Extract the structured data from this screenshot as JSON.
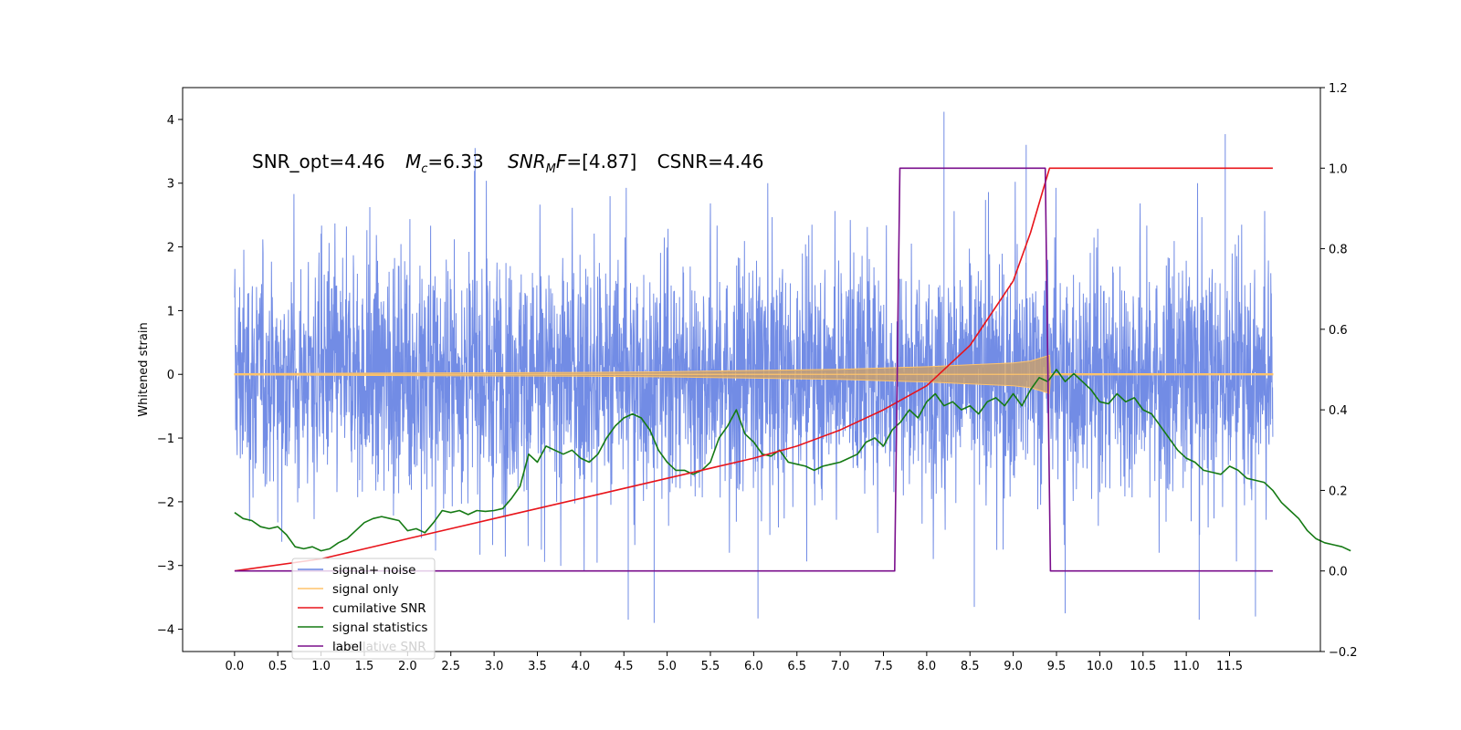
{
  "chart_data": {
    "type": "line",
    "title": "",
    "annotation": {
      "snr_opt": "SNR_opt=4.46",
      "mc_sym": "M",
      "mc_sub": "c",
      "mc_val": "=6.33",
      "snrmf_sym": "SNR",
      "snrmf_sub": "M",
      "snrmf_tail": "F",
      "snrmf_val": "=[4.87]",
      "csnr": "CSNR=4.46"
    },
    "ylabel_left": "Whitened strain",
    "ylabel_right": "",
    "xlim": [
      -0.6,
      12.55
    ],
    "ylim_left": [
      -4.35,
      4.5
    ],
    "ylim_right": [
      -0.2,
      1.2
    ],
    "x_ticks": [
      "0.0",
      "0.5",
      "1.0",
      "1.5",
      "2.0",
      "2.5",
      "3.0",
      "3.5",
      "4.0",
      "4.5",
      "5.0",
      "5.5",
      "6.0",
      "6.5",
      "7.0",
      "7.5",
      "8.0",
      "8.5",
      "9.0",
      "9.5",
      "10.0",
      "10.5",
      "11.0",
      "11.5"
    ],
    "y_ticks_left": [
      "4",
      "3",
      "2",
      "1",
      "0",
      "−1",
      "−2",
      "−3",
      "−4"
    ],
    "y_ticks_right": [
      "1.2",
      "1.0",
      "0.8",
      "0.6",
      "0.4",
      "0.2",
      "0.0",
      "−0.2"
    ],
    "legend": {
      "position": "lower-left",
      "ghost_text": "cumilative SNR",
      "entries": [
        {
          "label": "signal+ noise",
          "color": "#6a86e4"
        },
        {
          "label": "signal only",
          "color": "#ffc46b"
        },
        {
          "label": "cumilative SNR",
          "color": "#e8141b"
        },
        {
          "label": "signal statistics",
          "color": "#157a14"
        },
        {
          "label": "label",
          "color": "#7a0e8c"
        }
      ]
    },
    "series": [
      {
        "name": "signal+ noise",
        "axis": "left",
        "color": "#6a86e4",
        "x_range": [
          0,
          12.0
        ],
        "typical_band": [
          -2.2,
          2.2
        ],
        "extreme_peaks": [
          {
            "x": 2.78,
            "y": 3.55
          },
          {
            "x": 8.2,
            "y": 4.12
          },
          {
            "x": 9.15,
            "y": 3.6
          },
          {
            "x": 11.45,
            "y": 3.77
          },
          {
            "x": 4.55,
            "y": -3.85
          },
          {
            "x": 4.85,
            "y": -3.9
          },
          {
            "x": 8.55,
            "y": -3.65
          },
          {
            "x": 11.15,
            "y": -3.85
          },
          {
            "x": 11.8,
            "y": -3.8
          },
          {
            "x": 6.05,
            "y": -3.83
          },
          {
            "x": 9.6,
            "y": -3.75
          }
        ]
      },
      {
        "name": "signal only",
        "axis": "left",
        "color": "#ffc46b",
        "points": [
          [
            0,
            0.01
          ],
          [
            2,
            0.02
          ],
          [
            4,
            0.03
          ],
          [
            5,
            0.04
          ],
          [
            6,
            0.06
          ],
          [
            7,
            0.08
          ],
          [
            7.5,
            0.1
          ],
          [
            8,
            0.12
          ],
          [
            8.5,
            0.15
          ],
          [
            9,
            0.18
          ],
          [
            9.2,
            0.21
          ],
          [
            9.42,
            0.3
          ],
          [
            9.43,
            0.01
          ],
          [
            12,
            0.01
          ]
        ]
      },
      {
        "name": "cumilative SNR",
        "axis": "right",
        "color": "#e8141b",
        "points": [
          [
            0,
            0.0
          ],
          [
            1,
            0.03
          ],
          [
            2,
            0.08
          ],
          [
            3,
            0.13
          ],
          [
            4,
            0.18
          ],
          [
            5,
            0.23
          ],
          [
            6,
            0.28
          ],
          [
            6.5,
            0.31
          ],
          [
            7,
            0.35
          ],
          [
            7.5,
            0.4
          ],
          [
            8,
            0.46
          ],
          [
            8.5,
            0.56
          ],
          [
            9,
            0.72
          ],
          [
            9.2,
            0.84
          ],
          [
            9.35,
            0.95
          ],
          [
            9.42,
            1.0
          ],
          [
            12,
            1.0
          ]
        ]
      },
      {
        "name": "signal statistics",
        "axis": "right",
        "color": "#157a14",
        "points": [
          [
            0,
            0.145
          ],
          [
            0.1,
            0.13
          ],
          [
            0.2,
            0.125
          ],
          [
            0.3,
            0.11
          ],
          [
            0.4,
            0.105
          ],
          [
            0.5,
            0.11
          ],
          [
            0.6,
            0.09
          ],
          [
            0.7,
            0.06
          ],
          [
            0.8,
            0.055
          ],
          [
            0.9,
            0.06
          ],
          [
            1.0,
            0.05
          ],
          [
            1.1,
            0.055
          ],
          [
            1.2,
            0.07
          ],
          [
            1.3,
            0.08
          ],
          [
            1.4,
            0.1
          ],
          [
            1.5,
            0.12
          ],
          [
            1.6,
            0.13
          ],
          [
            1.7,
            0.135
          ],
          [
            1.8,
            0.13
          ],
          [
            1.9,
            0.125
          ],
          [
            2.0,
            0.1
          ],
          [
            2.1,
            0.105
          ],
          [
            2.2,
            0.095
          ],
          [
            2.3,
            0.12
          ],
          [
            2.4,
            0.15
          ],
          [
            2.5,
            0.145
          ],
          [
            2.6,
            0.15
          ],
          [
            2.7,
            0.14
          ],
          [
            2.8,
            0.15
          ],
          [
            2.9,
            0.148
          ],
          [
            3.0,
            0.15
          ],
          [
            3.1,
            0.155
          ],
          [
            3.2,
            0.18
          ],
          [
            3.3,
            0.21
          ],
          [
            3.4,
            0.29
          ],
          [
            3.5,
            0.27
          ],
          [
            3.6,
            0.31
          ],
          [
            3.7,
            0.3
          ],
          [
            3.8,
            0.29
          ],
          [
            3.9,
            0.3
          ],
          [
            4.0,
            0.28
          ],
          [
            4.1,
            0.27
          ],
          [
            4.2,
            0.29
          ],
          [
            4.3,
            0.33
          ],
          [
            4.4,
            0.36
          ],
          [
            4.5,
            0.38
          ],
          [
            4.6,
            0.39
          ],
          [
            4.7,
            0.38
          ],
          [
            4.8,
            0.35
          ],
          [
            4.9,
            0.3
          ],
          [
            5.0,
            0.27
          ],
          [
            5.1,
            0.25
          ],
          [
            5.2,
            0.25
          ],
          [
            5.3,
            0.24
          ],
          [
            5.4,
            0.25
          ],
          [
            5.5,
            0.27
          ],
          [
            5.6,
            0.33
          ],
          [
            5.7,
            0.36
          ],
          [
            5.8,
            0.4
          ],
          [
            5.9,
            0.34
          ],
          [
            6.0,
            0.32
          ],
          [
            6.1,
            0.29
          ],
          [
            6.2,
            0.285
          ],
          [
            6.3,
            0.3
          ],
          [
            6.4,
            0.27
          ],
          [
            6.5,
            0.265
          ],
          [
            6.6,
            0.26
          ],
          [
            6.7,
            0.25
          ],
          [
            6.8,
            0.26
          ],
          [
            6.9,
            0.265
          ],
          [
            7.0,
            0.27
          ],
          [
            7.1,
            0.28
          ],
          [
            7.2,
            0.29
          ],
          [
            7.3,
            0.32
          ],
          [
            7.4,
            0.33
          ],
          [
            7.5,
            0.31
          ],
          [
            7.6,
            0.35
          ],
          [
            7.7,
            0.37
          ],
          [
            7.8,
            0.4
          ],
          [
            7.9,
            0.38
          ],
          [
            8.0,
            0.42
          ],
          [
            8.1,
            0.44
          ],
          [
            8.2,
            0.41
          ],
          [
            8.3,
            0.42
          ],
          [
            8.4,
            0.4
          ],
          [
            8.5,
            0.41
          ],
          [
            8.6,
            0.39
          ],
          [
            8.7,
            0.42
          ],
          [
            8.8,
            0.43
          ],
          [
            8.9,
            0.41
          ],
          [
            9.0,
            0.44
          ],
          [
            9.1,
            0.41
          ],
          [
            9.2,
            0.45
          ],
          [
            9.3,
            0.48
          ],
          [
            9.4,
            0.47
          ],
          [
            9.5,
            0.5
          ],
          [
            9.6,
            0.47
          ],
          [
            9.7,
            0.49
          ],
          [
            9.8,
            0.47
          ],
          [
            9.9,
            0.45
          ],
          [
            10.0,
            0.42
          ],
          [
            10.1,
            0.415
          ],
          [
            10.2,
            0.44
          ],
          [
            10.3,
            0.42
          ],
          [
            10.4,
            0.43
          ],
          [
            10.5,
            0.4
          ],
          [
            10.6,
            0.39
          ],
          [
            10.7,
            0.36
          ],
          [
            10.8,
            0.33
          ],
          [
            10.9,
            0.3
          ],
          [
            11.0,
            0.28
          ],
          [
            11.1,
            0.27
          ],
          [
            11.2,
            0.25
          ],
          [
            11.3,
            0.245
          ],
          [
            11.4,
            0.24
          ],
          [
            11.5,
            0.26
          ],
          [
            11.6,
            0.25
          ],
          [
            11.7,
            0.23
          ],
          [
            11.8,
            0.225
          ],
          [
            11.9,
            0.22
          ],
          [
            12.0,
            0.2
          ],
          [
            12.1,
            0.17
          ],
          [
            12.2,
            0.15
          ],
          [
            12.3,
            0.13
          ],
          [
            12.4,
            0.1
          ],
          [
            12.5,
            0.08
          ],
          [
            12.6,
            0.07
          ],
          [
            12.7,
            0.065
          ],
          [
            12.8,
            0.06
          ],
          [
            12.9,
            0.05
          ]
        ]
      },
      {
        "name": "label",
        "axis": "right",
        "color": "#7a0e8c",
        "points": [
          [
            0,
            0
          ],
          [
            7.63,
            0
          ],
          [
            7.69,
            1.0
          ],
          [
            9.37,
            1.0
          ],
          [
            9.43,
            0
          ],
          [
            12.0,
            0
          ]
        ]
      }
    ]
  }
}
